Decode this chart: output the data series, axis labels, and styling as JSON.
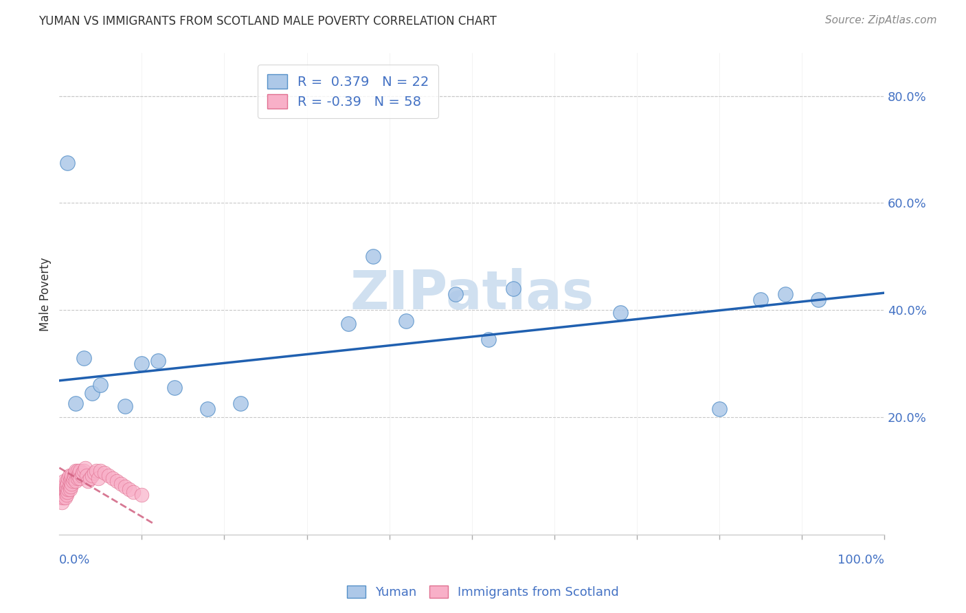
{
  "title": "YUMAN VS IMMIGRANTS FROM SCOTLAND MALE POVERTY CORRELATION CHART",
  "source": "Source: ZipAtlas.com",
  "ylabel": "Male Poverty",
  "xlim": [
    0.0,
    1.0
  ],
  "ylim": [
    -0.02,
    0.88
  ],
  "blue_scatter_x": [
    0.01,
    0.02,
    0.03,
    0.04,
    0.05,
    0.08,
    0.1,
    0.12,
    0.14,
    0.18,
    0.22,
    0.35,
    0.38,
    0.42,
    0.48,
    0.52,
    0.55,
    0.68,
    0.8,
    0.85,
    0.88,
    0.92
  ],
  "blue_scatter_y": [
    0.675,
    0.225,
    0.31,
    0.245,
    0.26,
    0.22,
    0.3,
    0.305,
    0.255,
    0.215,
    0.225,
    0.375,
    0.5,
    0.38,
    0.43,
    0.345,
    0.44,
    0.395,
    0.215,
    0.42,
    0.43,
    0.42
  ],
  "pink_scatter_x": [
    0.002,
    0.003,
    0.004,
    0.005,
    0.005,
    0.006,
    0.006,
    0.007,
    0.008,
    0.008,
    0.009,
    0.009,
    0.009,
    0.01,
    0.01,
    0.011,
    0.011,
    0.012,
    0.012,
    0.013,
    0.013,
    0.014,
    0.014,
    0.015,
    0.015,
    0.016,
    0.017,
    0.018,
    0.019,
    0.02,
    0.02,
    0.022,
    0.022,
    0.023,
    0.024,
    0.025,
    0.025,
    0.027,
    0.028,
    0.03,
    0.031,
    0.033,
    0.035,
    0.037,
    0.04,
    0.042,
    0.045,
    0.047,
    0.05,
    0.055,
    0.06,
    0.065,
    0.07,
    0.075,
    0.08,
    0.085,
    0.09,
    0.1
  ],
  "pink_scatter_y": [
    0.05,
    0.04,
    0.06,
    0.05,
    0.07,
    0.06,
    0.08,
    0.05,
    0.06,
    0.07,
    0.055,
    0.065,
    0.08,
    0.06,
    0.075,
    0.065,
    0.085,
    0.07,
    0.09,
    0.065,
    0.08,
    0.07,
    0.085,
    0.075,
    0.09,
    0.08,
    0.085,
    0.09,
    0.095,
    0.08,
    0.1,
    0.085,
    0.1,
    0.09,
    0.095,
    0.1,
    0.085,
    0.09,
    0.095,
    0.1,
    0.105,
    0.09,
    0.08,
    0.085,
    0.09,
    0.095,
    0.1,
    0.085,
    0.1,
    0.095,
    0.09,
    0.085,
    0.08,
    0.075,
    0.07,
    0.065,
    0.06,
    0.055
  ],
  "blue_R": 0.379,
  "blue_N": 22,
  "pink_R": -0.39,
  "pink_N": 58,
  "blue_line_x0": 0.0,
  "blue_line_x1": 1.0,
  "blue_line_y0": 0.268,
  "blue_line_y1": 0.432,
  "pink_line_x0": 0.0,
  "pink_line_x1": 0.115,
  "pink_line_y0": 0.105,
  "pink_line_y1": 0.0,
  "blue_color": "#adc8e8",
  "blue_edge_color": "#5590c8",
  "blue_line_color": "#2060b0",
  "pink_color": "#f8b0c8",
  "pink_edge_color": "#e07090",
  "pink_line_color": "#d06080",
  "title_color": "#333333",
  "tick_label_color": "#4472c4",
  "grid_color": "#c8c8c8",
  "source_color": "#888888",
  "legend_color": "#4472c4",
  "background_color": "#ffffff",
  "watermark_color": "#d0e0f0",
  "ylabel_right_ticks": [
    0.2,
    0.4,
    0.6,
    0.8
  ],
  "ylabel_right_labels": [
    "20.0%",
    "40.0%",
    "60.0%",
    "80.0%"
  ],
  "xlabel_minor_ticks": [
    0.1,
    0.2,
    0.3,
    0.4,
    0.5,
    0.6,
    0.7,
    0.8,
    0.9,
    1.0
  ],
  "bottom_left_label": "0.0%",
  "bottom_right_label": "100.0%"
}
